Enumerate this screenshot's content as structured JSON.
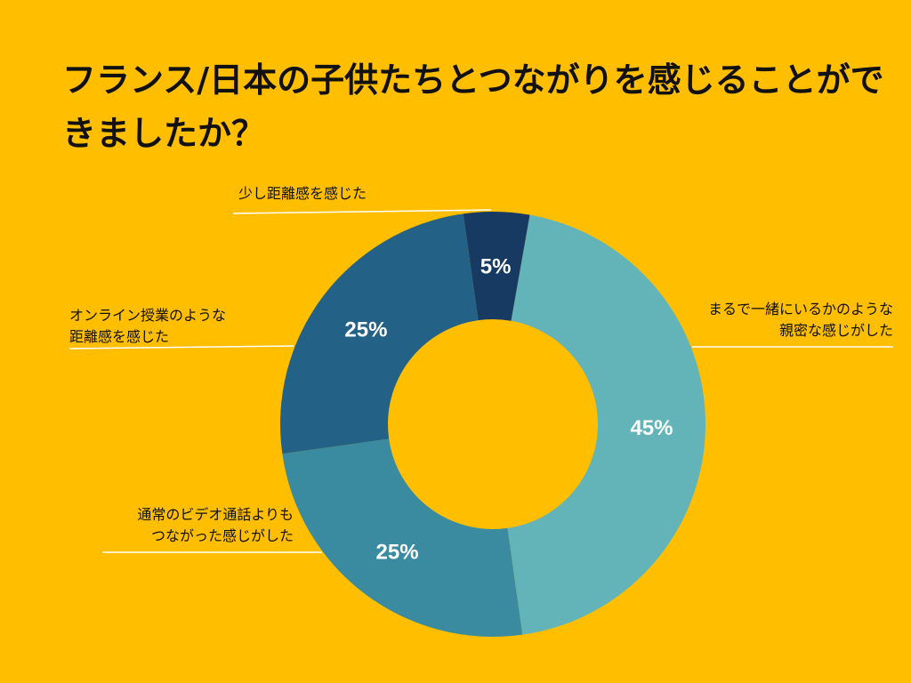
{
  "chart_data": {
    "type": "pie",
    "title": "フランス/日本の子供たちとつながりを感じることができましたか？",
    "categories": [
      "まるで一緒にいるかのような親密な感じがした",
      "通常のビデオ通話よりもつながった感じがした",
      "オンライン授業のような距離感を感じた",
      "少し距離感を感じた"
    ],
    "category_lines": [
      [
        "まるで一緒にいるかのような",
        "親密な感じがした"
      ],
      [
        "通常のビデオ通話よりも",
        "つながった感じがした"
      ],
      [
        "オンライン授業のような",
        "距離感を感じた"
      ],
      [
        "少し距離感を感じた"
      ]
    ],
    "values": [
      45,
      25,
      25,
      5
    ],
    "value_labels": [
      "45%",
      "25%",
      "25%",
      "5%"
    ],
    "colors": [
      "#62B4B8",
      "#3A8BA0",
      "#236286",
      "#163A62"
    ],
    "legend": "callouts"
  }
}
